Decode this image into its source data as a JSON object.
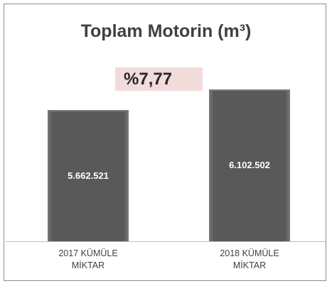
{
  "chart_data": {
    "type": "bar",
    "title": "Toplam Motorin (m³)",
    "annotation": "%7,77",
    "categories": [
      "2017 KÜMÜLE MİKTAR",
      "2018 KÜMÜLE MİKTAR"
    ],
    "values": [
      5662521,
      6102502
    ],
    "value_labels": [
      "5.662.521",
      "6.102.502"
    ],
    "color": "#595959",
    "ylim": [
      2850000,
      6500000
    ]
  }
}
